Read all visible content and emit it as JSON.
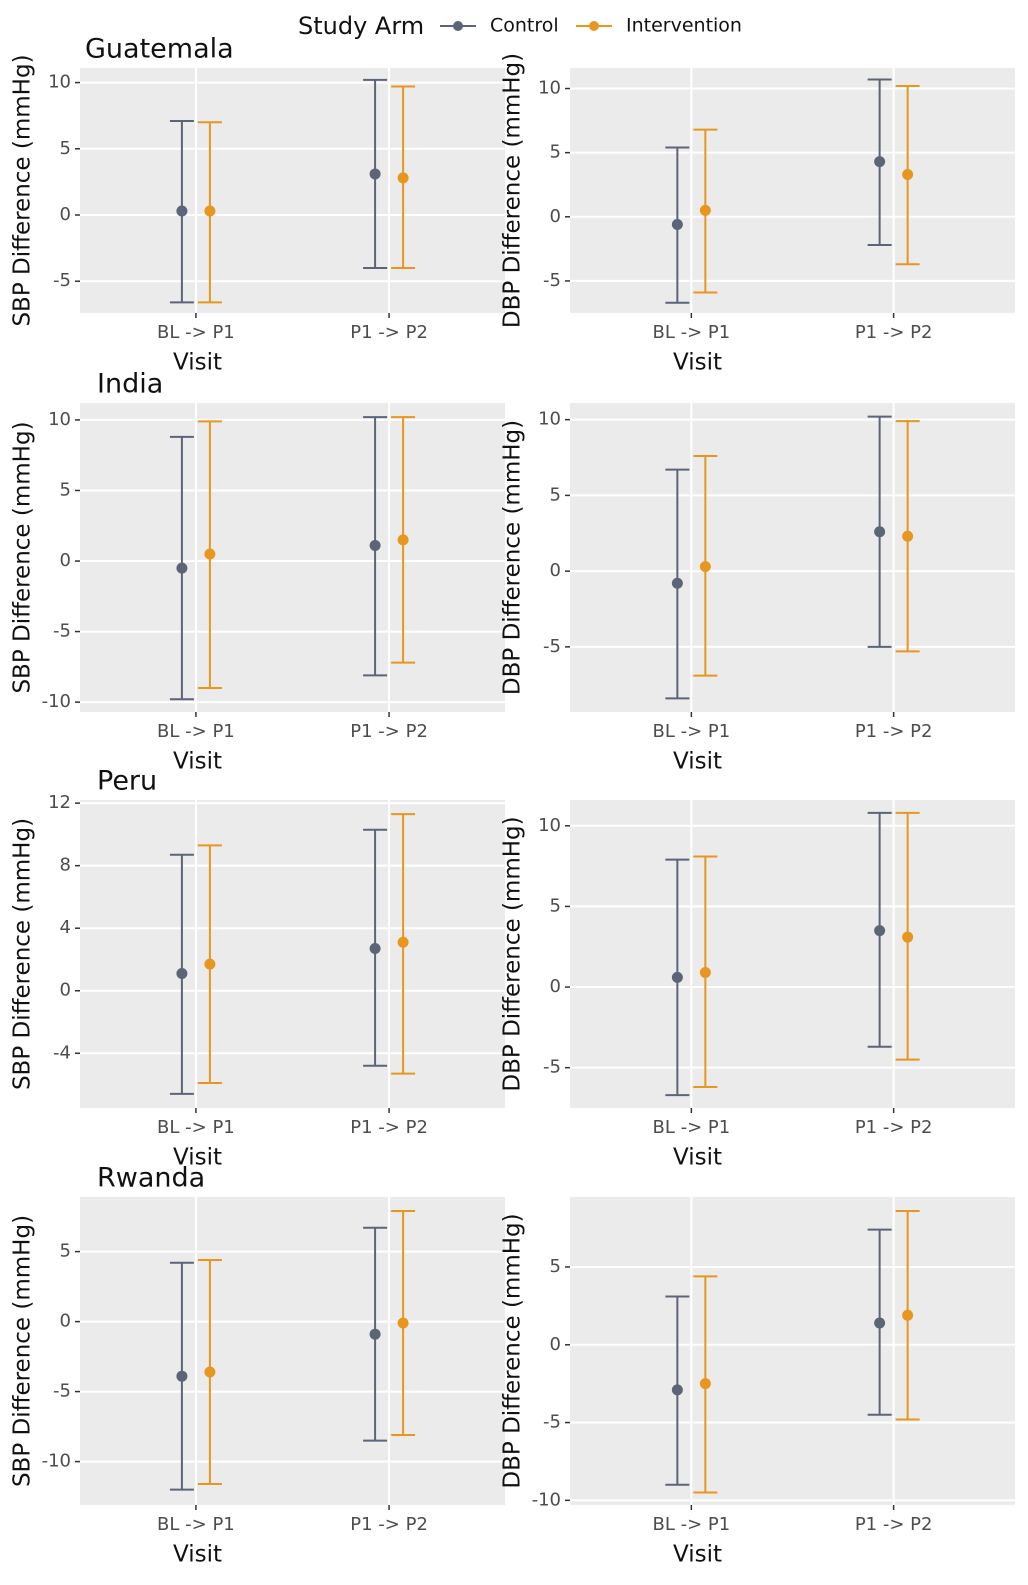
{
  "legend_title": "Study Arm",
  "chart_data": [
    {
      "type": "errorbar",
      "title": "Guatemala",
      "x_label": "Visit",
      "y_label": "SBP Difference (mmHg)",
      "categories": [
        "BL -> P1",
        "P1 -> P2"
      ],
      "series": [
        {
          "name": "Control",
          "color": "#5b6577",
          "values": [
            0.3,
            3.1
          ],
          "lower": [
            -6.6,
            -4.0
          ],
          "upper": [
            7.1,
            10.2
          ]
        },
        {
          "name": "Intervention",
          "color": "#e8961e",
          "values": [
            0.3,
            2.8
          ],
          "lower": [
            -6.6,
            -4.0
          ],
          "upper": [
            7.0,
            9.7
          ]
        }
      ],
      "ylim": [
        -7.4,
        11.1
      ],
      "yticks": [
        -5,
        0,
        5,
        10
      ],
      "grid": true
    },
    {
      "type": "errorbar",
      "x_label": "Visit",
      "y_label": "DBP Difference (mmHg)",
      "categories": [
        "BL -> P1",
        "P1 -> P2"
      ],
      "series": [
        {
          "name": "Control",
          "color": "#5b6577",
          "values": [
            -0.6,
            4.3
          ],
          "lower": [
            -6.7,
            -2.2
          ],
          "upper": [
            5.4,
            10.7
          ]
        },
        {
          "name": "Intervention",
          "color": "#e8961e",
          "values": [
            0.5,
            3.3
          ],
          "lower": [
            -5.9,
            -3.7
          ],
          "upper": [
            6.8,
            10.2
          ]
        }
      ],
      "ylim": [
        -7.5,
        11.6
      ],
      "yticks": [
        -5,
        0,
        5,
        10
      ],
      "grid": true
    },
    {
      "type": "errorbar",
      "title": "India",
      "x_label": "Visit",
      "y_label": "SBP Difference (mmHg)",
      "categories": [
        "BL -> P1",
        "P1 -> P2"
      ],
      "series": [
        {
          "name": "Control",
          "color": "#5b6577",
          "values": [
            -0.5,
            1.1
          ],
          "lower": [
            -9.8,
            -8.1
          ],
          "upper": [
            8.8,
            10.2
          ]
        },
        {
          "name": "Intervention",
          "color": "#e8961e",
          "values": [
            0.5,
            1.5
          ],
          "lower": [
            -9.0,
            -7.2
          ],
          "upper": [
            9.9,
            10.2
          ]
        }
      ],
      "ylim": [
        -10.7,
        11.2
      ],
      "yticks": [
        -10,
        -5,
        0,
        5,
        10
      ],
      "grid": true
    },
    {
      "type": "errorbar",
      "x_label": "Visit",
      "y_label": "DBP Difference (mmHg)",
      "categories": [
        "BL -> P1",
        "P1 -> P2"
      ],
      "series": [
        {
          "name": "Control",
          "color": "#5b6577",
          "values": [
            -0.8,
            2.6
          ],
          "lower": [
            -8.4,
            -5.0
          ],
          "upper": [
            6.7,
            10.2
          ]
        },
        {
          "name": "Intervention",
          "color": "#e8961e",
          "values": [
            0.3,
            2.3
          ],
          "lower": [
            -6.9,
            -5.3
          ],
          "upper": [
            7.6,
            9.9
          ]
        }
      ],
      "ylim": [
        -9.3,
        11.1
      ],
      "yticks": [
        -5,
        0,
        5,
        10
      ],
      "grid": true
    },
    {
      "type": "errorbar",
      "title": "Peru",
      "x_label": "Visit",
      "y_label": "SBP Difference (mmHg)",
      "categories": [
        "BL -> P1",
        "P1 -> P2"
      ],
      "series": [
        {
          "name": "Control",
          "color": "#5b6577",
          "values": [
            1.1,
            2.7
          ],
          "lower": [
            -6.6,
            -4.8
          ],
          "upper": [
            8.7,
            10.3
          ]
        },
        {
          "name": "Intervention",
          "color": "#e8961e",
          "values": [
            1.7,
            3.1
          ],
          "lower": [
            -5.9,
            -5.3
          ],
          "upper": [
            9.3,
            11.3
          ]
        }
      ],
      "ylim": [
        -7.5,
        12.2
      ],
      "yticks": [
        -4,
        0,
        4,
        8,
        12
      ],
      "grid": true
    },
    {
      "type": "errorbar",
      "x_label": "Visit",
      "y_label": "DBP Difference (mmHg)",
      "categories": [
        "BL -> P1",
        "P1 -> P2"
      ],
      "series": [
        {
          "name": "Control",
          "color": "#5b6577",
          "values": [
            0.6,
            3.5
          ],
          "lower": [
            -6.7,
            -3.7
          ],
          "upper": [
            7.9,
            10.8
          ]
        },
        {
          "name": "Intervention",
          "color": "#e8961e",
          "values": [
            0.9,
            3.1
          ],
          "lower": [
            -6.2,
            -4.5
          ],
          "upper": [
            8.1,
            10.8
          ]
        }
      ],
      "ylim": [
        -7.5,
        11.6
      ],
      "yticks": [
        -5,
        0,
        5,
        10
      ],
      "grid": true
    },
    {
      "type": "errorbar",
      "title": "Rwanda",
      "x_label": "Visit",
      "y_label": "SBP Difference (mmHg)",
      "categories": [
        "BL -> P1",
        "P1 -> P2"
      ],
      "series": [
        {
          "name": "Control",
          "color": "#5b6577",
          "values": [
            -3.9,
            -0.9
          ],
          "lower": [
            -12.0,
            -8.5
          ],
          "upper": [
            4.2,
            6.7
          ]
        },
        {
          "name": "Intervention",
          "color": "#e8961e",
          "values": [
            -3.6,
            -0.1
          ],
          "lower": [
            -11.6,
            -8.1
          ],
          "upper": [
            4.4,
            7.9
          ]
        }
      ],
      "ylim": [
        -13.1,
        8.9
      ],
      "yticks": [
        -10,
        -5,
        0,
        5
      ],
      "grid": true
    },
    {
      "type": "errorbar",
      "x_label": "Visit",
      "y_label": "DBP Difference (mmHg)",
      "categories": [
        "BL -> P1",
        "P1 -> P2"
      ],
      "series": [
        {
          "name": "Control",
          "color": "#5b6577",
          "values": [
            -2.9,
            1.4
          ],
          "lower": [
            -9.0,
            -4.5
          ],
          "upper": [
            3.1,
            7.4
          ]
        },
        {
          "name": "Intervention",
          "color": "#e8961e",
          "values": [
            -2.5,
            1.9
          ],
          "lower": [
            -9.5,
            -4.8
          ],
          "upper": [
            4.4,
            8.6
          ]
        }
      ],
      "ylim": [
        -10.3,
        9.5
      ],
      "yticks": [
        -10,
        -5,
        0,
        5
      ],
      "grid": true
    }
  ]
}
